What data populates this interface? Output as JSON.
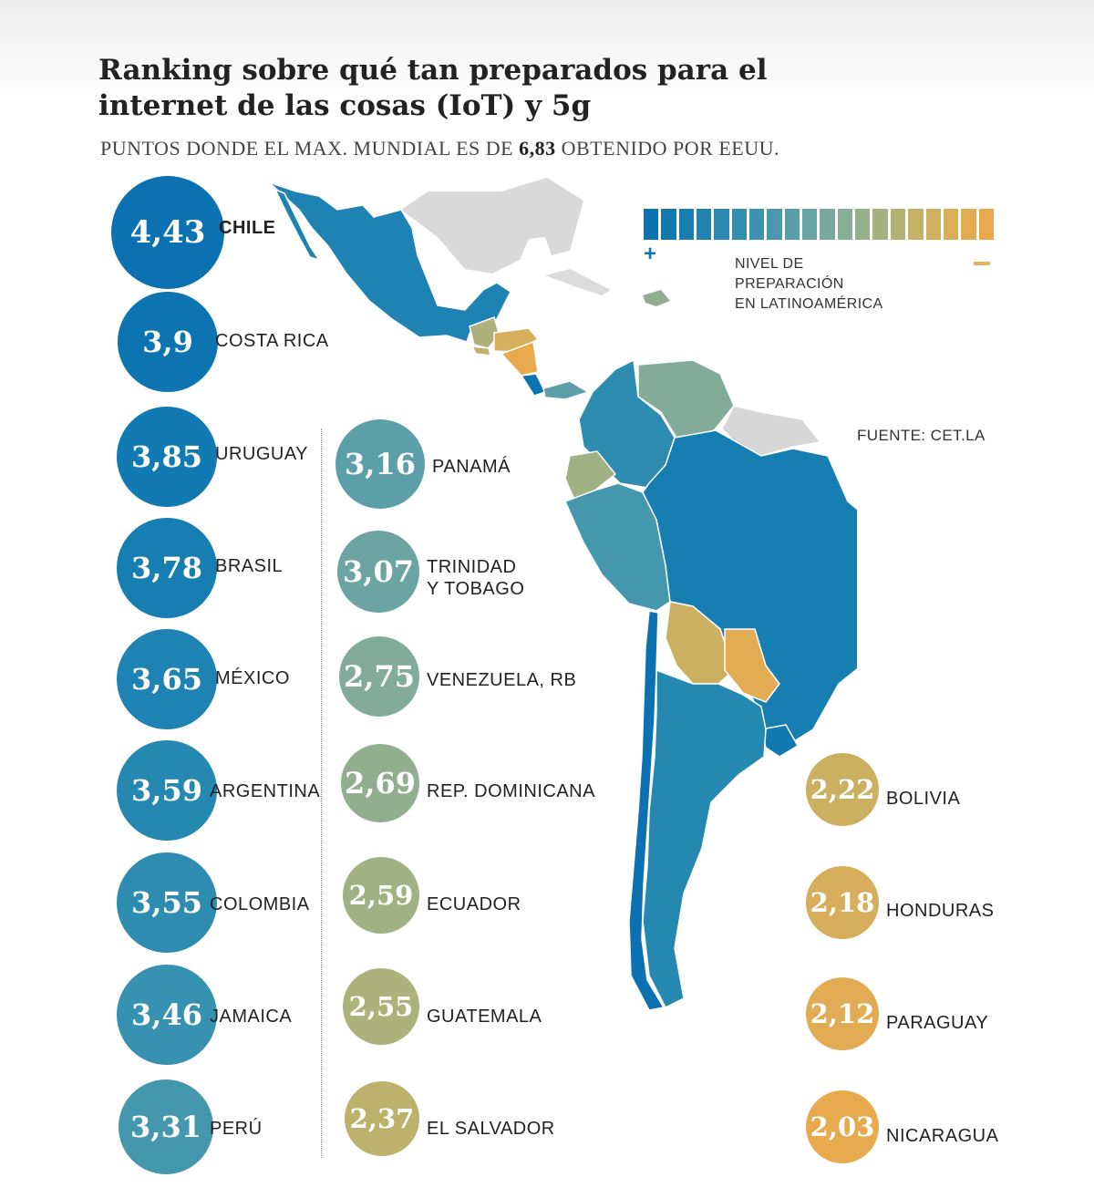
{
  "header": {
    "title": "Ranking sobre qué tan preparados para el internet de las cosas (IoT) y 5g",
    "subtitle_pre": "PUNTOS DONDE EL MAX. MUNDIAL ES DE ",
    "subtitle_value": "6,83",
    "subtitle_post": " OBTENIDO POR EEUU."
  },
  "legend": {
    "label_line1": "NIVEL DE PREPARACIÓN",
    "label_line2": "EN LATINOAMÉRICA",
    "plus_symbol": "+",
    "colors": [
      "#0c72b0",
      "#1377b0",
      "#1a7db1",
      "#2283b1",
      "#2a89b1",
      "#338eb1",
      "#3d93af",
      "#4a98ad",
      "#589ea9",
      "#68a4a4",
      "#78a99e",
      "#88ad97",
      "#96b08c",
      "#a5b17f",
      "#b3b272",
      "#c2b166",
      "#cfb05e",
      "#dbae58",
      "#e3ac52",
      "#e9aa4e"
    ]
  },
  "source": "FUENTE: CET.LA",
  "chart_data": {
    "type": "ranking",
    "title": "Ranking sobre qué tan preparados para el internet de las cosas (IoT) y 5g",
    "unit": "puntos (máx. mundial 6,83, EEUU)",
    "items": [
      {
        "country": "CHILE",
        "value": "4,43",
        "color": "#0b71b1"
      },
      {
        "country": "COSTA RICA",
        "value": "3,9",
        "color": "#0c75b1"
      },
      {
        "country": "URUGUAY",
        "value": "3,85",
        "color": "#127ab2"
      },
      {
        "country": "BRASIL",
        "value": "3,78",
        "color": "#177eb2"
      },
      {
        "country": "MÉXICO",
        "value": "3,65",
        "color": "#1e83b2"
      },
      {
        "country": "ARGENTINA",
        "value": "3,59",
        "color": "#2588b1"
      },
      {
        "country": "COLOMBIA",
        "value": "3,55",
        "color": "#2e8cb1"
      },
      {
        "country": "JAMAICA",
        "value": "3,46",
        "color": "#3791b0"
      },
      {
        "country": "PERÚ",
        "value": "3,31",
        "color": "#4597ae"
      },
      {
        "country": "PANAMÁ",
        "value": "3,16",
        "color": "#5c9fa9"
      },
      {
        "country": "TRINIDAD\nY TOBAGO",
        "value": "3,07",
        "color": "#6ca4a4"
      },
      {
        "country": "VENEZUELA, RB",
        "value": "2,75",
        "color": "#82ac99"
      },
      {
        "country": "REP. DOMINICANA",
        "value": "2,69",
        "color": "#91af8f"
      },
      {
        "country": "ECUADOR",
        "value": "2,59",
        "color": "#a0b184"
      },
      {
        "country": "GUATEMALA",
        "value": "2,55",
        "color": "#acb27a"
      },
      {
        "country": "EL SALVADOR",
        "value": "2,37",
        "color": "#bdb26c"
      },
      {
        "country": "BOLIVIA",
        "value": "2,22",
        "color": "#ccb062"
      },
      {
        "country": "HONDURAS",
        "value": "2,18",
        "color": "#d7ae5b"
      },
      {
        "country": "PARAGUAY",
        "value": "2,12",
        "color": "#e1ac54"
      },
      {
        "country": "NICARAGUA",
        "value": "2,03",
        "color": "#e9aa4e"
      }
    ]
  }
}
